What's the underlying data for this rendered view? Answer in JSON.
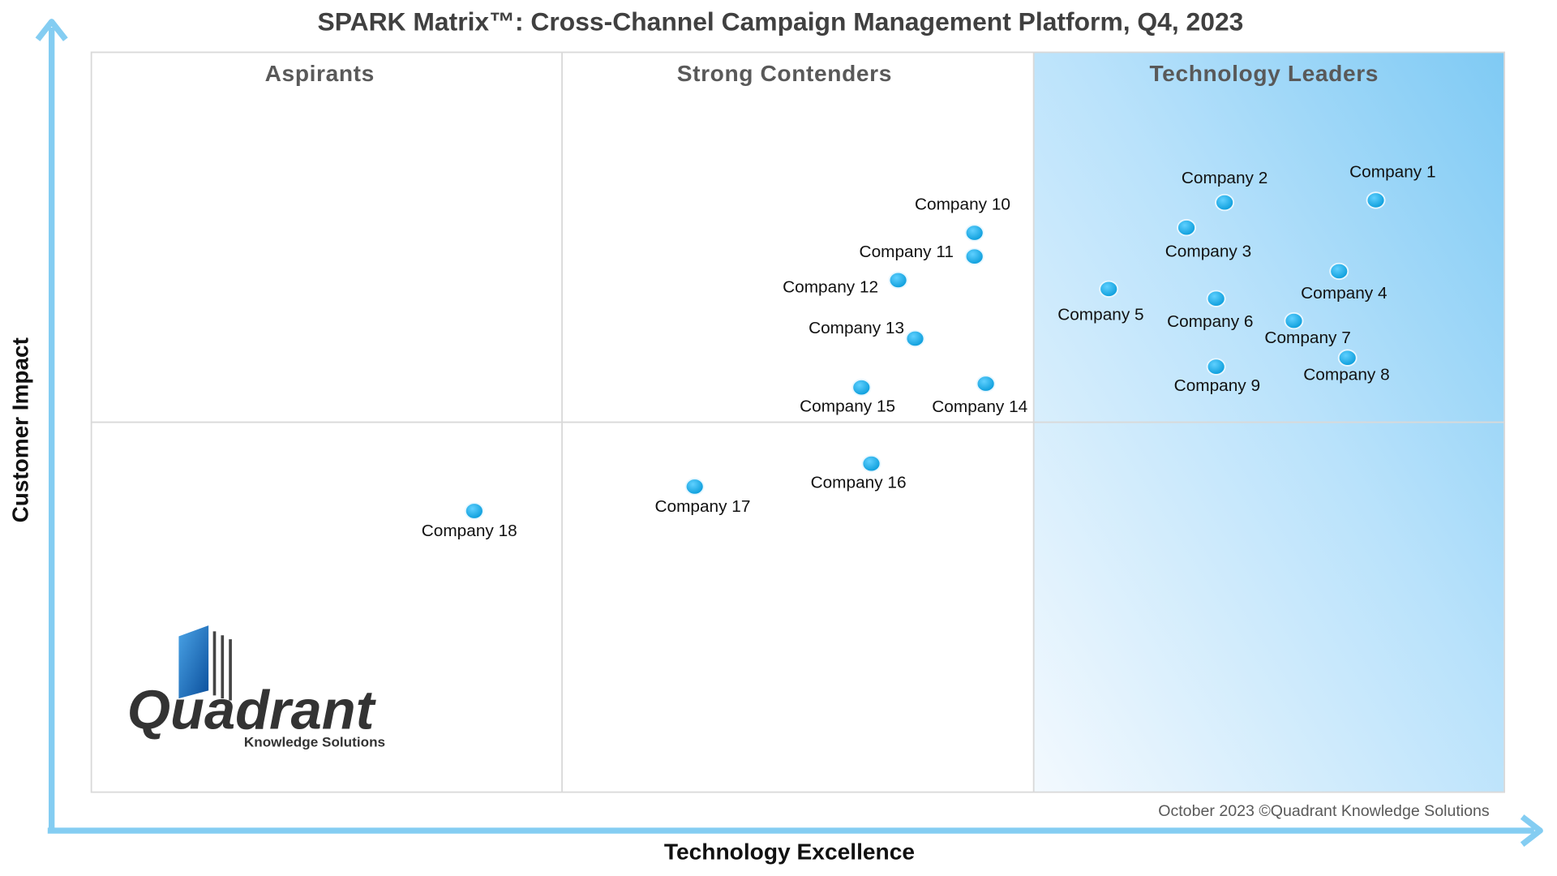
{
  "chart_data": {
    "type": "scatter",
    "title": "SPARK Matrix™: Cross-Channel Campaign Management Platform, Q4, 2023",
    "x_label": "Technology Excellence",
    "y_label": "Customer Impact",
    "quadrants": [
      "Aspirants",
      "Strong Contenders",
      "Technology Leaders"
    ],
    "footnote": "October 2023 ©Quadrant Knowledge Solutions",
    "logo": {
      "name": "Quadrant",
      "tagline": "Knowledge Solutions"
    },
    "xlim": [
      0,
      100
    ],
    "ylim": [
      0,
      100
    ],
    "color": "#0aa6e6",
    "series": [
      {
        "name": "Vendors",
        "labels": [
          "Company 1",
          "Company 2",
          "Company 3",
          "Company 4",
          "Company 5",
          "Company 6",
          "Company 7",
          "Company 8",
          "Company 9",
          "Company 10",
          "Company 11",
          "Company 12",
          "Company 13",
          "Company 14",
          "Company 15",
          "Company 16",
          "Company 17",
          "Company 18"
        ],
        "x": [
          90.9,
          80.2,
          77.5,
          88.3,
          72.0,
          79.6,
          85.1,
          88.9,
          79.6,
          62.5,
          62.5,
          57.1,
          58.3,
          63.3,
          54.5,
          55.2,
          42.7,
          27.1
        ],
        "values": [
          80.0,
          79.7,
          76.3,
          70.4,
          68.0,
          66.7,
          63.7,
          58.7,
          57.5,
          75.6,
          72.4,
          69.2,
          61.3,
          55.2,
          54.7,
          44.4,
          41.3,
          38.0
        ]
      }
    ]
  }
}
